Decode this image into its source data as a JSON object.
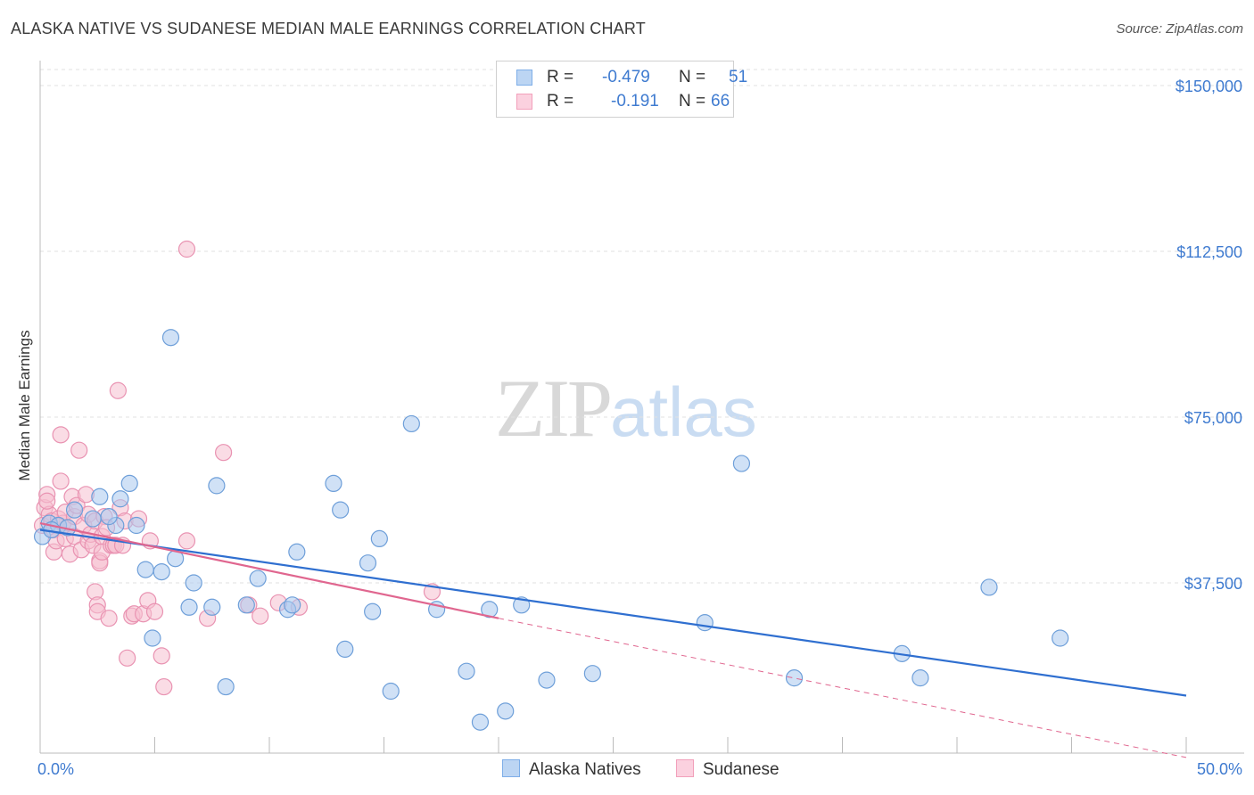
{
  "header": {
    "title": "ALASKA NATIVE VS SUDANESE MEDIAN MALE EARNINGS CORRELATION CHART",
    "source": "Source: ZipAtlas.com"
  },
  "watermark": {
    "zip": "ZIP",
    "atlas": "atlas"
  },
  "legend": {
    "rows": [
      {
        "r_label": "R =",
        "r_value": "-0.479",
        "n_label": "N =",
        "n_value": "51",
        "color": "#7eaee8"
      },
      {
        "r_label": "R =",
        "r_value": "-0.191",
        "n_label": "N =",
        "n_value": "66",
        "color": "#f2a0bb"
      }
    ]
  },
  "bottom_legend": {
    "series1": "Alaska Natives",
    "series2": "Sudanese"
  },
  "colors": {
    "alaska_fill": "#a9c8ee",
    "alaska_stroke": "#6e9fd9",
    "alaska_line": "#2f6fd0",
    "sudanese_fill": "#f6bfd0",
    "sudanese_stroke": "#e993b2",
    "sudanese_line": "#e0668f"
  },
  "chart_data": {
    "type": "scatter",
    "title": "ALASKA NATIVE VS SUDANESE MEDIAN MALE EARNINGS CORRELATION CHART",
    "xlabel": "",
    "ylabel": "Median Male Earnings",
    "xlim": [
      0,
      50
    ],
    "ylim": [
      0,
      152000
    ],
    "x_tick_labels": [
      "0.0%",
      "50.0%"
    ],
    "y_ticks": [
      37500,
      75000,
      112500,
      150000
    ],
    "y_tick_labels": [
      "$37,500",
      "$75,000",
      "$112,500",
      "$150,000"
    ],
    "series": [
      {
        "name": "Alaska Natives",
        "points": [
          [
            0.1,
            48000
          ],
          [
            0.4,
            51000
          ],
          [
            0.8,
            50500
          ],
          [
            1.5,
            54000
          ],
          [
            2.6,
            57000
          ],
          [
            3.3,
            50500
          ],
          [
            3.5,
            56500
          ],
          [
            3.9,
            60000
          ],
          [
            4.2,
            50500
          ],
          [
            4.6,
            40500
          ],
          [
            4.9,
            25000
          ],
          [
            5.3,
            40000
          ],
          [
            5.9,
            43000
          ],
          [
            5.7,
            93000
          ],
          [
            6.5,
            32000
          ],
          [
            6.7,
            37500
          ],
          [
            7.5,
            32000
          ],
          [
            7.7,
            59500
          ],
          [
            8.1,
            14000
          ],
          [
            9.0,
            32500
          ],
          [
            9.5,
            38500
          ],
          [
            10.8,
            31500
          ],
          [
            11.0,
            32500
          ],
          [
            11.2,
            44500
          ],
          [
            12.8,
            60000
          ],
          [
            13.1,
            54000
          ],
          [
            13.3,
            22500
          ],
          [
            14.3,
            42000
          ],
          [
            14.5,
            31000
          ],
          [
            14.8,
            47500
          ],
          [
            15.3,
            13000
          ],
          [
            16.2,
            73500
          ],
          [
            17.3,
            31500
          ],
          [
            18.6,
            17500
          ],
          [
            19.2,
            6000
          ],
          [
            19.6,
            31500
          ],
          [
            20.3,
            8500
          ],
          [
            21.0,
            32500
          ],
          [
            22.1,
            15500
          ],
          [
            24.1,
            17000
          ],
          [
            29.0,
            28500
          ],
          [
            30.6,
            64500
          ],
          [
            32.9,
            16000
          ],
          [
            37.6,
            21500
          ],
          [
            38.4,
            16000
          ],
          [
            41.4,
            36500
          ],
          [
            44.5,
            25000
          ],
          [
            2.3,
            52000
          ],
          [
            1.2,
            50000
          ],
          [
            0.5,
            49500
          ],
          [
            3.0,
            52500
          ]
        ]
      },
      {
        "name": "Sudanese",
        "points": [
          [
            0.1,
            50500
          ],
          [
            0.2,
            54500
          ],
          [
            0.3,
            57500
          ],
          [
            0.4,
            53000
          ],
          [
            0.5,
            51500
          ],
          [
            0.6,
            49500
          ],
          [
            0.6,
            44500
          ],
          [
            0.7,
            47000
          ],
          [
            0.8,
            52000
          ],
          [
            0.9,
            60500
          ],
          [
            0.9,
            71000
          ],
          [
            1.0,
            51000
          ],
          [
            1.1,
            53500
          ],
          [
            1.1,
            47500
          ],
          [
            1.2,
            50000
          ],
          [
            1.3,
            44000
          ],
          [
            1.4,
            57000
          ],
          [
            1.5,
            52500
          ],
          [
            1.5,
            48000
          ],
          [
            1.6,
            55000
          ],
          [
            1.7,
            67500
          ],
          [
            1.8,
            45000
          ],
          [
            1.9,
            50500
          ],
          [
            2.0,
            57500
          ],
          [
            2.1,
            47000
          ],
          [
            2.1,
            53000
          ],
          [
            2.2,
            48500
          ],
          [
            2.3,
            46000
          ],
          [
            2.4,
            51500
          ],
          [
            2.4,
            35500
          ],
          [
            2.5,
            32500
          ],
          [
            2.5,
            31000
          ],
          [
            2.6,
            42500
          ],
          [
            2.6,
            42000
          ],
          [
            2.7,
            48000
          ],
          [
            2.7,
            44500
          ],
          [
            2.8,
            52500
          ],
          [
            2.9,
            50000
          ],
          [
            3.0,
            29500
          ],
          [
            3.1,
            46000
          ],
          [
            3.2,
            46000
          ],
          [
            3.3,
            46000
          ],
          [
            3.4,
            81000
          ],
          [
            3.5,
            54500
          ],
          [
            3.6,
            46000
          ],
          [
            3.7,
            51500
          ],
          [
            3.8,
            20500
          ],
          [
            4.0,
            30000
          ],
          [
            4.1,
            30500
          ],
          [
            4.3,
            52000
          ],
          [
            4.5,
            30500
          ],
          [
            4.7,
            33500
          ],
          [
            4.8,
            47000
          ],
          [
            5.0,
            31000
          ],
          [
            5.3,
            21000
          ],
          [
            5.4,
            14000
          ],
          [
            6.4,
            47000
          ],
          [
            6.4,
            113000
          ],
          [
            7.3,
            29500
          ],
          [
            8.0,
            67000
          ],
          [
            9.1,
            32500
          ],
          [
            9.6,
            30000
          ],
          [
            10.4,
            33000
          ],
          [
            11.3,
            32000
          ],
          [
            17.1,
            35500
          ],
          [
            0.3,
            56000
          ]
        ]
      }
    ],
    "trendlines": [
      {
        "series": "Alaska Natives",
        "x": [
          0,
          50
        ],
        "y": [
          49500,
          12000
        ]
      },
      {
        "series": "Sudanese",
        "x": [
          0,
          20
        ],
        "y": [
          51000,
          29500
        ],
        "dashed_extension_to": [
          50,
          -2000
        ]
      }
    ]
  }
}
